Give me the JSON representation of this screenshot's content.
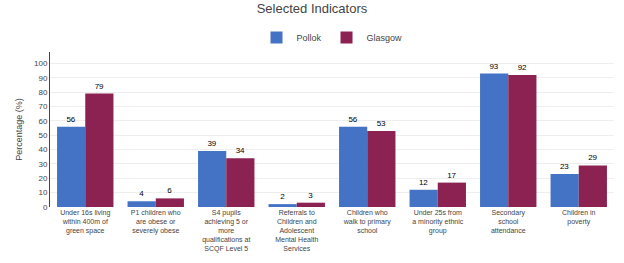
{
  "chart_data": {
    "type": "bar",
    "title": "Selected Indicators",
    "ylabel": "Percentage (%)",
    "categories": [
      "Under 16s living\nwithin 400m of\ngreen space",
      "P1 children who\nare obese or\nseverely obese",
      "S4 pupils\nachieving 5 or\nmore\nqualifications at\nSCQF Level 5",
      "Referrals to\nChildren and\nAdolescent\nMental Health\nServices",
      "Children who\nwalk to primary\nschool",
      "Under 25s from\na minority ethnic\ngroup",
      "Secondary\nschool\nattendance",
      "Children in\npoverty"
    ],
    "series": [
      {
        "name": "Pollok",
        "color": "#4472C4",
        "values": [
          56,
          4,
          39,
          2,
          56,
          12,
          93,
          23
        ]
      },
      {
        "name": "Glasgow",
        "color": "#8B2252",
        "values": [
          79,
          6,
          34,
          3,
          53,
          17,
          92,
          29
        ]
      }
    ],
    "ylim": [
      0,
      108
    ],
    "yticks": [
      0,
      10,
      20,
      30,
      40,
      50,
      60,
      70,
      80,
      90,
      100
    ],
    "grid": true,
    "legend": "top",
    "data_labels": true
  }
}
